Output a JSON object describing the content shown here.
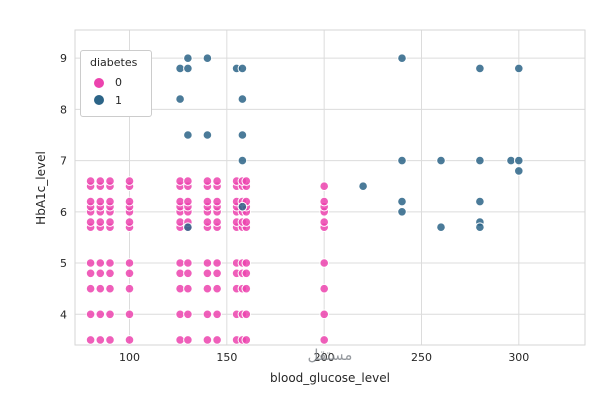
{
  "watermark": "مستقل",
  "chart_data": {
    "type": "scatter",
    "title": "",
    "xlabel": "blood_glucose_level",
    "ylabel": "HbA1c_level",
    "legend_title": "diabetes",
    "legend_position": "upper left",
    "grid": true,
    "xlim": [
      72,
      334
    ],
    "ylim": [
      3.4,
      9.55
    ],
    "xticks": [
      100,
      150,
      200,
      250,
      300
    ],
    "yticks": [
      4,
      5,
      6,
      7,
      8,
      9
    ],
    "point_style": {
      "radius": 4.3,
      "edge_color": "#ffffff",
      "fill_opacity": 0.85
    },
    "grid_color": "#dcdcdc",
    "border_color": "#d6d6d6",
    "series": [
      {
        "name": "0",
        "color": "#ec43ae",
        "points": [
          [
            80,
            3.5
          ],
          [
            85,
            3.5
          ],
          [
            90,
            3.5
          ],
          [
            100,
            3.5
          ],
          [
            126,
            3.5
          ],
          [
            130,
            3.5
          ],
          [
            140,
            3.5
          ],
          [
            145,
            3.5
          ],
          [
            155,
            3.5
          ],
          [
            158,
            3.5
          ],
          [
            160,
            3.5
          ],
          [
            200,
            3.5
          ],
          [
            80,
            4
          ],
          [
            85,
            4
          ],
          [
            90,
            4
          ],
          [
            100,
            4
          ],
          [
            126,
            4
          ],
          [
            130,
            4
          ],
          [
            140,
            4
          ],
          [
            145,
            4
          ],
          [
            155,
            4
          ],
          [
            158,
            4
          ],
          [
            160,
            4
          ],
          [
            200,
            4
          ],
          [
            80,
            4.5
          ],
          [
            85,
            4.5
          ],
          [
            90,
            4.5
          ],
          [
            100,
            4.5
          ],
          [
            126,
            4.5
          ],
          [
            130,
            4.5
          ],
          [
            140,
            4.5
          ],
          [
            145,
            4.5
          ],
          [
            155,
            4.5
          ],
          [
            158,
            4.5
          ],
          [
            160,
            4.5
          ],
          [
            200,
            4.5
          ],
          [
            80,
            4.8
          ],
          [
            85,
            4.8
          ],
          [
            90,
            4.8
          ],
          [
            100,
            4.8
          ],
          [
            126,
            4.8
          ],
          [
            130,
            4.8
          ],
          [
            140,
            4.8
          ],
          [
            145,
            4.8
          ],
          [
            155,
            4.8
          ],
          [
            158,
            4.8
          ],
          [
            160,
            4.8
          ],
          [
            80,
            5
          ],
          [
            85,
            5
          ],
          [
            90,
            5
          ],
          [
            100,
            5
          ],
          [
            126,
            5
          ],
          [
            130,
            5
          ],
          [
            140,
            5
          ],
          [
            145,
            5
          ],
          [
            155,
            5
          ],
          [
            158,
            5
          ],
          [
            160,
            5
          ],
          [
            200,
            5
          ],
          [
            80,
            5.7
          ],
          [
            85,
            5.7
          ],
          [
            90,
            5.7
          ],
          [
            100,
            5.7
          ],
          [
            126,
            5.7
          ],
          [
            130,
            5.7
          ],
          [
            140,
            5.7
          ],
          [
            145,
            5.7
          ],
          [
            155,
            5.7
          ],
          [
            158,
            5.7
          ],
          [
            160,
            5.7
          ],
          [
            200,
            5.7
          ],
          [
            80,
            5.8
          ],
          [
            85,
            5.8
          ],
          [
            90,
            5.8
          ],
          [
            100,
            5.8
          ],
          [
            126,
            5.8
          ],
          [
            130,
            5.8
          ],
          [
            140,
            5.8
          ],
          [
            145,
            5.8
          ],
          [
            155,
            5.8
          ],
          [
            158,
            5.8
          ],
          [
            160,
            5.8
          ],
          [
            200,
            5.8
          ],
          [
            80,
            6
          ],
          [
            85,
            6
          ],
          [
            90,
            6
          ],
          [
            100,
            6
          ],
          [
            126,
            6
          ],
          [
            130,
            6
          ],
          [
            140,
            6
          ],
          [
            145,
            6
          ],
          [
            155,
            6
          ],
          [
            158,
            6
          ],
          [
            160,
            6
          ],
          [
            200,
            6
          ],
          [
            80,
            6.1
          ],
          [
            85,
            6.1
          ],
          [
            90,
            6.1
          ],
          [
            100,
            6.1
          ],
          [
            126,
            6.1
          ],
          [
            130,
            6.1
          ],
          [
            140,
            6.1
          ],
          [
            145,
            6.1
          ],
          [
            155,
            6.1
          ],
          [
            158,
            6.1
          ],
          [
            160,
            6.1
          ],
          [
            200,
            6.1
          ],
          [
            80,
            6.2
          ],
          [
            85,
            6.2
          ],
          [
            90,
            6.2
          ],
          [
            100,
            6.2
          ],
          [
            126,
            6.2
          ],
          [
            130,
            6.2
          ],
          [
            140,
            6.2
          ],
          [
            145,
            6.2
          ],
          [
            155,
            6.2
          ],
          [
            158,
            6.2
          ],
          [
            160,
            6.2
          ],
          [
            200,
            6.2
          ],
          [
            80,
            6.5
          ],
          [
            85,
            6.5
          ],
          [
            90,
            6.5
          ],
          [
            100,
            6.5
          ],
          [
            126,
            6.5
          ],
          [
            130,
            6.5
          ],
          [
            140,
            6.5
          ],
          [
            145,
            6.5
          ],
          [
            155,
            6.5
          ],
          [
            158,
            6.5
          ],
          [
            160,
            6.5
          ],
          [
            200,
            6.5
          ],
          [
            80,
            6.6
          ],
          [
            85,
            6.6
          ],
          [
            90,
            6.6
          ],
          [
            100,
            6.6
          ],
          [
            126,
            6.6
          ],
          [
            130,
            6.6
          ],
          [
            140,
            6.6
          ],
          [
            145,
            6.6
          ],
          [
            155,
            6.6
          ],
          [
            158,
            6.6
          ],
          [
            160,
            6.6
          ]
        ]
      },
      {
        "name": "1",
        "color": "#2c6487",
        "points": [
          [
            130,
            9
          ],
          [
            140,
            9
          ],
          [
            240,
            9
          ],
          [
            126,
            8.8
          ],
          [
            130,
            8.8
          ],
          [
            155,
            8.8
          ],
          [
            158,
            8.8
          ],
          [
            280,
            8.8
          ],
          [
            300,
            8.8
          ],
          [
            126,
            8.2
          ],
          [
            158,
            8.2
          ],
          [
            130,
            7.5
          ],
          [
            140,
            7.5
          ],
          [
            158,
            7.5
          ],
          [
            158,
            7
          ],
          [
            240,
            7
          ],
          [
            260,
            7
          ],
          [
            280,
            7
          ],
          [
            296,
            7
          ],
          [
            300,
            7
          ],
          [
            300,
            6.8
          ],
          [
            220,
            6.5
          ],
          [
            240,
            6.2
          ],
          [
            280,
            6.2
          ],
          [
            158,
            6.1
          ],
          [
            240,
            6
          ],
          [
            130,
            5.7
          ],
          [
            260,
            5.7
          ],
          [
            280,
            5.8
          ],
          [
            280,
            5.7
          ]
        ]
      }
    ]
  }
}
